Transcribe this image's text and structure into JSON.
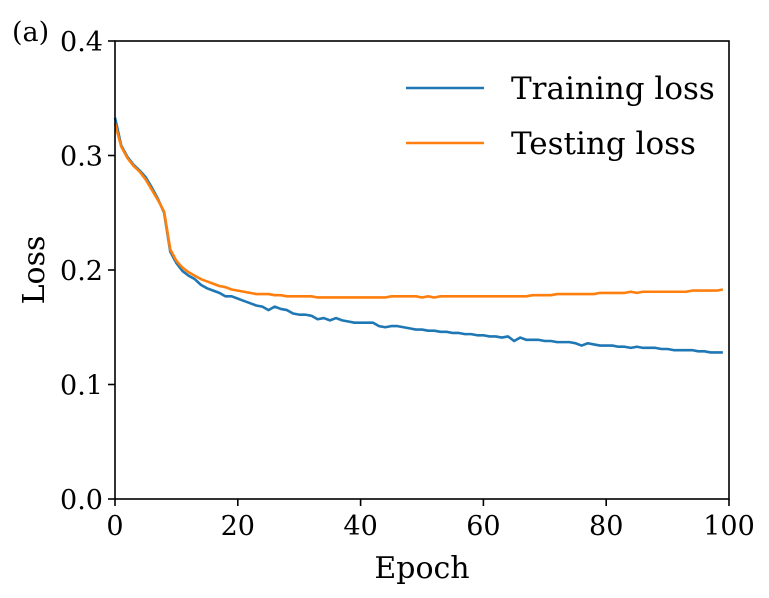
{
  "chart_data": {
    "type": "line",
    "panel_label": "(a)",
    "title": "",
    "xlabel": "Epoch",
    "ylabel": "Loss",
    "xlim": [
      0,
      100
    ],
    "ylim": [
      0.0,
      0.4
    ],
    "x_ticks": [
      0,
      20,
      40,
      60,
      80,
      100
    ],
    "x_tick_labels": [
      "0",
      "20",
      "40",
      "60",
      "80",
      "100"
    ],
    "y_ticks": [
      0.0,
      0.1,
      0.2,
      0.3,
      0.4
    ],
    "y_tick_labels": [
      "0.0",
      "0.1",
      "0.2",
      "0.3",
      "0.4"
    ],
    "grid": false,
    "legend_position": "top-right",
    "series": [
      {
        "name": "Training loss",
        "color": "#1f77b4",
        "x": [
          0,
          1,
          2,
          3,
          4,
          5,
          6,
          7,
          8,
          9,
          10,
          11,
          12,
          13,
          14,
          15,
          16,
          17,
          18,
          19,
          20,
          21,
          22,
          23,
          24,
          25,
          26,
          27,
          28,
          29,
          30,
          31,
          32,
          33,
          34,
          35,
          36,
          37,
          38,
          39,
          40,
          41,
          42,
          43,
          44,
          45,
          46,
          47,
          48,
          49,
          50,
          51,
          52,
          53,
          54,
          55,
          56,
          57,
          58,
          59,
          60,
          61,
          62,
          63,
          64,
          65,
          66,
          67,
          68,
          69,
          70,
          71,
          72,
          73,
          74,
          75,
          76,
          77,
          78,
          79,
          80,
          81,
          82,
          83,
          84,
          85,
          86,
          87,
          88,
          89,
          90,
          91,
          92,
          93,
          94,
          95,
          96,
          97,
          98,
          99
        ],
        "y": [
          0.333,
          0.309,
          0.299,
          0.292,
          0.287,
          0.281,
          0.272,
          0.262,
          0.25,
          0.216,
          0.206,
          0.199,
          0.195,
          0.192,
          0.187,
          0.184,
          0.182,
          0.18,
          0.177,
          0.177,
          0.175,
          0.173,
          0.171,
          0.169,
          0.168,
          0.165,
          0.168,
          0.166,
          0.165,
          0.162,
          0.161,
          0.161,
          0.16,
          0.157,
          0.158,
          0.156,
          0.158,
          0.156,
          0.155,
          0.154,
          0.154,
          0.154,
          0.154,
          0.151,
          0.15,
          0.151,
          0.151,
          0.15,
          0.149,
          0.148,
          0.148,
          0.147,
          0.147,
          0.146,
          0.146,
          0.145,
          0.145,
          0.144,
          0.144,
          0.143,
          0.143,
          0.142,
          0.142,
          0.141,
          0.142,
          0.138,
          0.141,
          0.139,
          0.139,
          0.139,
          0.138,
          0.138,
          0.137,
          0.137,
          0.137,
          0.136,
          0.134,
          0.136,
          0.135,
          0.134,
          0.134,
          0.134,
          0.133,
          0.133,
          0.132,
          0.133,
          0.132,
          0.132,
          0.132,
          0.131,
          0.131,
          0.13,
          0.13,
          0.13,
          0.13,
          0.129,
          0.129,
          0.128,
          0.128,
          0.128
        ]
      },
      {
        "name": "Testing loss",
        "color": "#ff7f0e",
        "x": [
          0,
          1,
          2,
          3,
          4,
          5,
          6,
          7,
          8,
          9,
          10,
          11,
          12,
          13,
          14,
          15,
          16,
          17,
          18,
          19,
          20,
          21,
          22,
          23,
          24,
          25,
          26,
          27,
          28,
          29,
          30,
          31,
          32,
          33,
          34,
          35,
          36,
          37,
          38,
          39,
          40,
          41,
          42,
          43,
          44,
          45,
          46,
          47,
          48,
          49,
          50,
          51,
          52,
          53,
          54,
          55,
          56,
          57,
          58,
          59,
          60,
          61,
          62,
          63,
          64,
          65,
          66,
          67,
          68,
          69,
          70,
          71,
          72,
          73,
          74,
          75,
          76,
          77,
          78,
          79,
          80,
          81,
          82,
          83,
          84,
          85,
          86,
          87,
          88,
          89,
          90,
          91,
          92,
          93,
          94,
          95,
          96,
          97,
          98,
          99
        ],
        "y": [
          0.328,
          0.308,
          0.298,
          0.291,
          0.286,
          0.279,
          0.27,
          0.261,
          0.251,
          0.218,
          0.208,
          0.202,
          0.198,
          0.195,
          0.192,
          0.19,
          0.188,
          0.186,
          0.185,
          0.183,
          0.182,
          0.181,
          0.18,
          0.179,
          0.179,
          0.179,
          0.178,
          0.178,
          0.177,
          0.177,
          0.177,
          0.177,
          0.177,
          0.176,
          0.176,
          0.176,
          0.176,
          0.176,
          0.176,
          0.176,
          0.176,
          0.176,
          0.176,
          0.176,
          0.176,
          0.177,
          0.177,
          0.177,
          0.177,
          0.177,
          0.176,
          0.177,
          0.176,
          0.177,
          0.177,
          0.177,
          0.177,
          0.177,
          0.177,
          0.177,
          0.177,
          0.177,
          0.177,
          0.177,
          0.177,
          0.177,
          0.177,
          0.177,
          0.178,
          0.178,
          0.178,
          0.178,
          0.179,
          0.179,
          0.179,
          0.179,
          0.179,
          0.179,
          0.179,
          0.18,
          0.18,
          0.18,
          0.18,
          0.18,
          0.181,
          0.18,
          0.181,
          0.181,
          0.181,
          0.181,
          0.181,
          0.181,
          0.181,
          0.181,
          0.182,
          0.182,
          0.182,
          0.182,
          0.182,
          0.183
        ]
      }
    ]
  }
}
